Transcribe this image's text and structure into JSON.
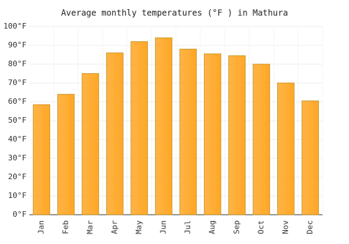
{
  "chart_data": {
    "type": "bar",
    "title": "Average monthly temperatures (°F ) in Mathura",
    "categories": [
      "Jan",
      "Feb",
      "Mar",
      "Apr",
      "May",
      "Jun",
      "Jul",
      "Aug",
      "Sep",
      "Oct",
      "Nov",
      "Dec"
    ],
    "values": [
      58.5,
      64,
      75,
      86,
      92,
      94,
      88,
      85.5,
      84.5,
      80,
      70,
      60.5
    ],
    "color": "#ffa726",
    "ylim": [
      0,
      100
    ],
    "yticks": [
      {
        "value": 0,
        "label": "0°F"
      },
      {
        "value": 10,
        "label": "10°F"
      },
      {
        "value": 20,
        "label": "20°F"
      },
      {
        "value": 30,
        "label": "30°F"
      },
      {
        "value": 40,
        "label": "40°F"
      },
      {
        "value": 50,
        "label": "50°F"
      },
      {
        "value": 60,
        "label": "60°F"
      },
      {
        "value": 70,
        "label": "70°F"
      },
      {
        "value": 80,
        "label": "80°F"
      },
      {
        "value": 90,
        "label": "90°F"
      },
      {
        "value": 100,
        "label": "100°F"
      }
    ],
    "grid": true
  }
}
